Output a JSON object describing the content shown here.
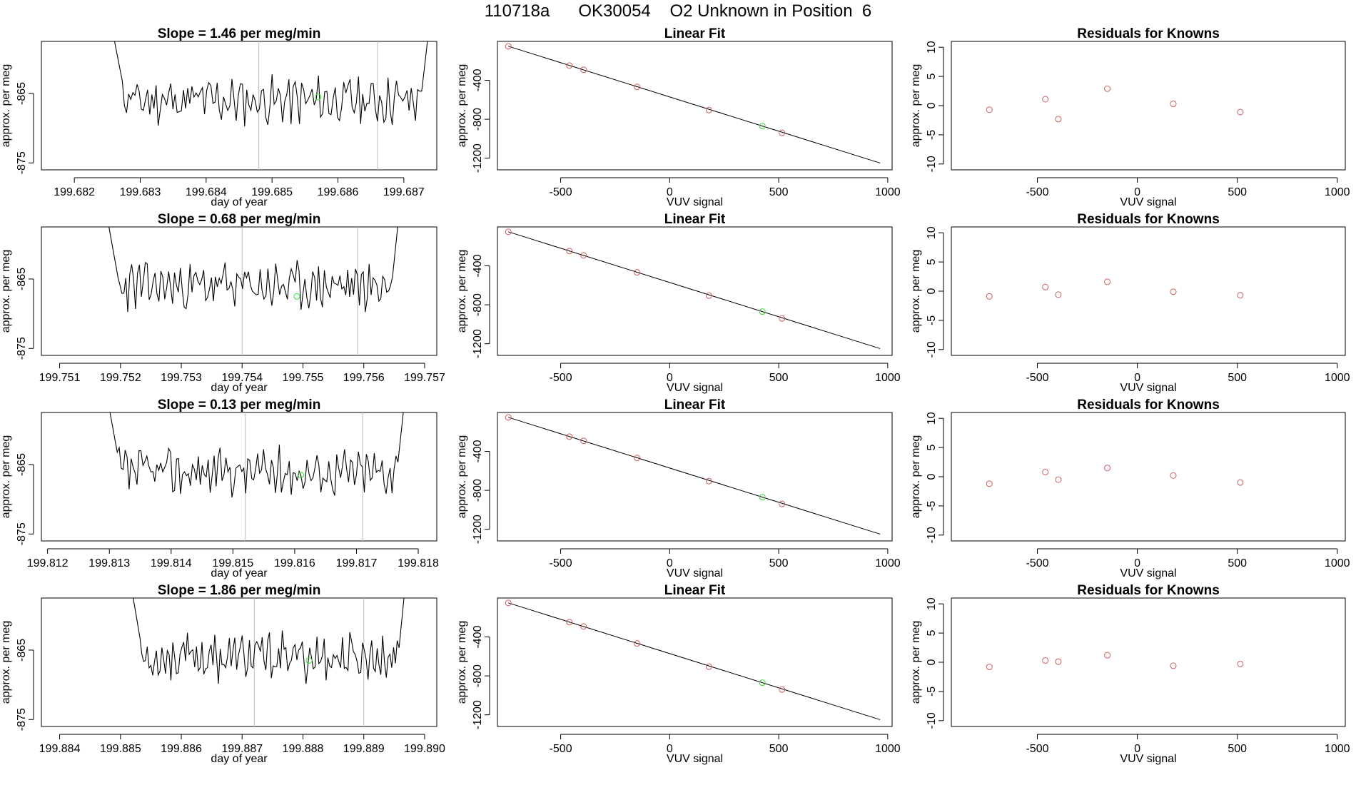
{
  "page_title": "110718a      OK30054    O2 Unknown in Position  6",
  "colors": {
    "line": "#000000",
    "known_point": "#cd5c5c",
    "unknown_point": "#33dd33",
    "vline": "#bbbbbb"
  },
  "chart_data": [
    {
      "type": "line",
      "panel": "row1-signal",
      "title": "Slope =  1.46  per meg/min",
      "xlabel": "day of year",
      "ylabel": "approx. per meg",
      "xlim": [
        199.6815,
        199.6875
      ],
      "ylim": [
        -876,
        -857.5
      ],
      "x_ticks": [
        199.682,
        199.683,
        199.684,
        199.685,
        199.686,
        199.687
      ],
      "x_tick_labels": [
        "199.682",
        "199.683",
        "199.684",
        "199.685",
        "199.686",
        "199.687"
      ],
      "y_ticks": [
        -865,
        -875
      ],
      "y_tick_labels": [
        "-865",
        "-875"
      ],
      "vlines": [
        199.6848,
        199.6866
      ],
      "unknown_point": {
        "x": 199.6857,
        "y": -865.5
      },
      "trace_start": 199.6826,
      "trace_end": 199.6874,
      "seed": 11
    },
    {
      "type": "scatter",
      "panel": "row1-fit",
      "title": "Linear Fit",
      "xlabel": "VUV signal",
      "ylabel": "approx. per meg",
      "xlim": [
        -790,
        1020
      ],
      "ylim": [
        -1320,
        0
      ],
      "x_ticks": [
        -500,
        0,
        500,
        1000
      ],
      "x_tick_labels": [
        "-500",
        "0",
        "500",
        "1000"
      ],
      "y_ticks": [
        -400,
        -800,
        -1200
      ],
      "y_tick_labels": [
        "-400",
        "-800",
        "-1200"
      ],
      "fit_line": {
        "x": [
          -740,
          965
        ],
        "y": [
          -50,
          -1250
        ]
      },
      "known_points": {
        "x": [
          -740,
          -460,
          -395,
          -150,
          180,
          515
        ],
        "y": [
          -50,
          -248,
          -292,
          -467,
          -705,
          -940
        ]
      },
      "unknown_points": {
        "x": [
          425
        ],
        "y": [
          -870
        ]
      }
    },
    {
      "type": "scatter",
      "panel": "row1-residuals",
      "title": "Residuals for Knowns",
      "xlabel": "VUV signal",
      "ylabel": "approx. per meg",
      "xlim": [
        -930,
        1040
      ],
      "ylim": [
        -11,
        11
      ],
      "x_ticks": [
        -500,
        0,
        500,
        1000
      ],
      "x_tick_labels": [
        "-500",
        "0",
        "500",
        "1000"
      ],
      "y_ticks": [
        10,
        5,
        0,
        -5,
        -10
      ],
      "y_tick_labels": [
        "10",
        "5",
        "0",
        "-5",
        "-10"
      ],
      "known_points": {
        "x": [
          -740,
          -460,
          -395,
          -150,
          180,
          515
        ],
        "y": [
          -0.7,
          1.1,
          -2.3,
          2.9,
          0.3,
          -1.1
        ]
      }
    },
    {
      "type": "line",
      "panel": "row2-signal",
      "title": "Slope =  0.68  per meg/min",
      "xlabel": "day of year",
      "ylabel": "approx. per meg",
      "xlim": [
        199.7507,
        199.7572
      ],
      "ylim": [
        -876,
        -857.5
      ],
      "x_ticks": [
        199.751,
        199.752,
        199.753,
        199.754,
        199.755,
        199.756,
        199.757
      ],
      "x_tick_labels": [
        "199.751",
        "199.752",
        "199.753",
        "199.754",
        "199.755",
        "199.756",
        "199.757"
      ],
      "y_ticks": [
        -865,
        -875
      ],
      "y_tick_labels": [
        "-865",
        "-875"
      ],
      "vlines": [
        199.754,
        199.7559
      ],
      "unknown_point": {
        "x": 199.7549,
        "y": -867.5
      },
      "trace_start": 199.7518,
      "trace_end": 199.7566,
      "seed": 23
    },
    {
      "type": "scatter",
      "panel": "row2-fit",
      "title": "Linear Fit",
      "xlabel": "VUV signal",
      "ylabel": "approx. per meg",
      "xlim": [
        -790,
        1020
      ],
      "ylim": [
        -1320,
        0
      ],
      "x_ticks": [
        -500,
        0,
        500,
        1000
      ],
      "x_tick_labels": [
        "-500",
        "0",
        "500",
        "1000"
      ],
      "y_ticks": [
        -400,
        -800,
        -1200
      ],
      "y_tick_labels": [
        "-400",
        "-800",
        "-1200"
      ],
      "fit_line": {
        "x": [
          -740,
          965
        ],
        "y": [
          -50,
          -1250
        ]
      },
      "known_points": {
        "x": [
          -740,
          -460,
          -395,
          -150,
          180,
          515
        ],
        "y": [
          -50,
          -248,
          -292,
          -467,
          -705,
          -940
        ]
      },
      "unknown_points": {
        "x": [
          425
        ],
        "y": [
          -870
        ]
      }
    },
    {
      "type": "scatter",
      "panel": "row2-residuals",
      "title": "Residuals for Knowns",
      "xlabel": "VUV signal",
      "ylabel": "approx. per meg",
      "xlim": [
        -930,
        1040
      ],
      "ylim": [
        -11,
        11
      ],
      "x_ticks": [
        -500,
        0,
        500,
        1000
      ],
      "x_tick_labels": [
        "-500",
        "0",
        "500",
        "1000"
      ],
      "y_ticks": [
        10,
        5,
        0,
        -5,
        -10
      ],
      "y_tick_labels": [
        "10",
        "5",
        "0",
        "-5",
        "-10"
      ],
      "known_points": {
        "x": [
          -740,
          -460,
          -395,
          -150,
          180,
          515
        ],
        "y": [
          -0.9,
          0.7,
          -0.6,
          1.6,
          -0.1,
          -0.7
        ]
      }
    },
    {
      "type": "line",
      "panel": "row3-signal",
      "title": "Slope =  0.13  per meg/min",
      "xlabel": "day of year",
      "ylabel": "approx. per meg",
      "xlim": [
        199.8119,
        199.8183
      ],
      "ylim": [
        -876,
        -857.5
      ],
      "x_ticks": [
        199.812,
        199.813,
        199.814,
        199.815,
        199.816,
        199.817,
        199.818
      ],
      "x_tick_labels": [
        "199.812",
        "199.813",
        "199.814",
        "199.815",
        "199.816",
        "199.817",
        "199.818"
      ],
      "y_ticks": [
        -865,
        -875
      ],
      "y_tick_labels": [
        "-865",
        "-875"
      ],
      "vlines": [
        199.8152,
        199.8171
      ],
      "unknown_point": {
        "x": 199.8161,
        "y": -866.5
      },
      "trace_start": 199.813,
      "trace_end": 199.8178,
      "seed": 37
    },
    {
      "type": "scatter",
      "panel": "row3-fit",
      "title": "Linear Fit",
      "xlabel": "VUV signal",
      "ylabel": "approx. per meg",
      "xlim": [
        -790,
        1020
      ],
      "ylim": [
        -1320,
        0
      ],
      "x_ticks": [
        -500,
        0,
        500,
        1000
      ],
      "x_tick_labels": [
        "-500",
        "0",
        "500",
        "1000"
      ],
      "y_ticks": [
        -400,
        -800,
        -1200
      ],
      "y_tick_labels": [
        "-400",
        "-800",
        "-1200"
      ],
      "fit_line": {
        "x": [
          -740,
          965
        ],
        "y": [
          -50,
          -1250
        ]
      },
      "known_points": {
        "x": [
          -740,
          -460,
          -395,
          -150,
          180,
          515
        ],
        "y": [
          -50,
          -248,
          -292,
          -467,
          -705,
          -940
        ]
      },
      "unknown_points": {
        "x": [
          425
        ],
        "y": [
          -870
        ]
      }
    },
    {
      "type": "scatter",
      "panel": "row3-residuals",
      "title": "Residuals for Knowns",
      "xlabel": "VUV signal",
      "ylabel": "approx. per meg",
      "xlim": [
        -930,
        1040
      ],
      "ylim": [
        -11,
        11
      ],
      "x_ticks": [
        -500,
        0,
        500,
        1000
      ],
      "x_tick_labels": [
        "-500",
        "0",
        "500",
        "1000"
      ],
      "y_ticks": [
        10,
        5,
        0,
        -5,
        -10
      ],
      "y_tick_labels": [
        "10",
        "5",
        "0",
        "-5",
        "-10"
      ],
      "known_points": {
        "x": [
          -740,
          -460,
          -395,
          -150,
          180,
          515
        ],
        "y": [
          -1.2,
          0.8,
          -0.5,
          1.5,
          0.2,
          -1.0
        ]
      }
    },
    {
      "type": "line",
      "panel": "row4-signal",
      "title": "Slope =  1.86  per meg/min",
      "xlabel": "day of year",
      "ylabel": "approx. per meg",
      "xlim": [
        199.8837,
        199.8902
      ],
      "ylim": [
        -876,
        -857.5
      ],
      "x_ticks": [
        199.884,
        199.885,
        199.886,
        199.887,
        199.888,
        199.889,
        199.89
      ],
      "x_tick_labels": [
        "199.884",
        "199.885",
        "199.886",
        "199.887",
        "199.888",
        "199.889",
        "199.890"
      ],
      "y_ticks": [
        -865,
        -875
      ],
      "y_tick_labels": [
        "-865",
        "-875"
      ],
      "vlines": [
        199.8872,
        199.889
      ],
      "unknown_point": {
        "x": 199.8881,
        "y": -866.5
      },
      "trace_start": 199.8852,
      "trace_end": 199.8897,
      "seed": 53
    },
    {
      "type": "scatter",
      "panel": "row4-fit",
      "title": "Linear Fit",
      "xlabel": "VUV signal",
      "ylabel": "approx. per meg",
      "xlim": [
        -790,
        1020
      ],
      "ylim": [
        -1320,
        0
      ],
      "x_ticks": [
        -500,
        0,
        500,
        1000
      ],
      "x_tick_labels": [
        "-500",
        "0",
        "500",
        "1000"
      ],
      "y_ticks": [
        -400,
        -800,
        -1200
      ],
      "y_tick_labels": [
        "-400",
        "-800",
        "-1200"
      ],
      "fit_line": {
        "x": [
          -740,
          965
        ],
        "y": [
          -50,
          -1250
        ]
      },
      "known_points": {
        "x": [
          -740,
          -460,
          -395,
          -150,
          180,
          515
        ],
        "y": [
          -50,
          -248,
          -292,
          -467,
          -705,
          -940
        ]
      },
      "unknown_points": {
        "x": [
          425
        ],
        "y": [
          -870
        ]
      }
    },
    {
      "type": "scatter",
      "panel": "row4-residuals",
      "title": "Residuals for Knowns",
      "xlabel": "VUV signal",
      "ylabel": "approx. per meg",
      "xlim": [
        -930,
        1040
      ],
      "ylim": [
        -11,
        11
      ],
      "x_ticks": [
        -500,
        0,
        500,
        1000
      ],
      "x_tick_labels": [
        "-500",
        "0",
        "500",
        "1000"
      ],
      "y_ticks": [
        10,
        5,
        0,
        -5,
        -10
      ],
      "y_tick_labels": [
        "10",
        "5",
        "0",
        "-5",
        "-10"
      ],
      "known_points": {
        "x": [
          -740,
          -460,
          -395,
          -150,
          180,
          515
        ],
        "y": [
          -0.8,
          0.3,
          0.1,
          1.2,
          -0.6,
          -0.3
        ]
      }
    }
  ]
}
